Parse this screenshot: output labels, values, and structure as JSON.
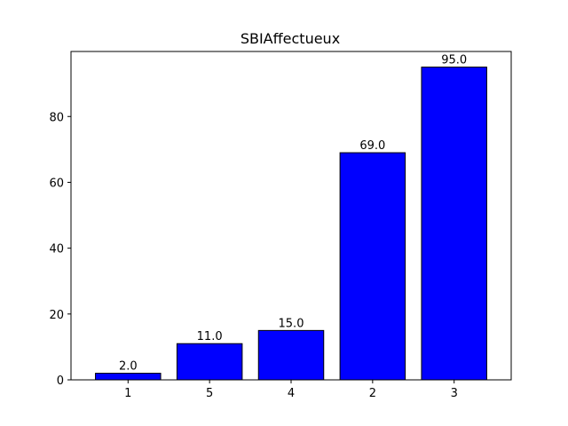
{
  "chart_data": {
    "type": "bar",
    "title": "SBIAffectueux",
    "xlabel": "",
    "ylabel": "",
    "categories": [
      "1",
      "5",
      "4",
      "2",
      "3"
    ],
    "values": [
      2.0,
      11.0,
      15.0,
      69.0,
      95.0
    ],
    "data_labels": [
      "2.0",
      "11.0",
      "15.0",
      "69.0",
      "95.0"
    ],
    "ylim": [
      0,
      99.75
    ],
    "yticks": [
      0,
      20,
      40,
      60,
      80
    ],
    "ytick_labels": [
      "0",
      "20",
      "40",
      "60",
      "80"
    ],
    "grid": false,
    "legend": "none",
    "bar_color": "#0000ff",
    "edge_color": "#000000"
  }
}
